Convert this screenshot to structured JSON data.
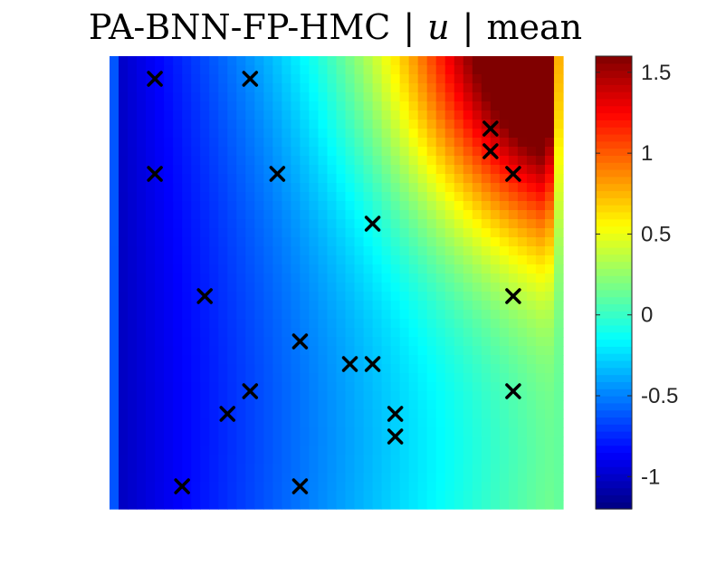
{
  "chart_data": {
    "type": "heatmap",
    "title_parts": {
      "prefix": "PA-BNN-FP-HMC",
      "variable": "u",
      "suffix": "mean"
    },
    "colormap": "jet",
    "colorbar": {
      "clim": [
        -1.2,
        1.6
      ],
      "ticks": [
        -1,
        -0.5,
        0,
        0.5,
        1,
        1.5
      ],
      "tick_labels": [
        "-1",
        "-0.5",
        "0",
        "0.5",
        "1",
        "1.5"
      ]
    },
    "axes_visible": false,
    "domain": {
      "x": [
        0,
        1
      ],
      "y": [
        0,
        1
      ]
    },
    "field_description": "Smooth contour field: low (blue, about -1.1) on left side, rising through cyan/yellow to a high peak (dark red, about 1.6) in the upper-right corner; thin boundary strip on left and right edges near 0.",
    "observation_points": [
      {
        "x": 0.1,
        "y": 0.95
      },
      {
        "x": 0.31,
        "y": 0.95
      },
      {
        "x": 0.84,
        "y": 0.84
      },
      {
        "x": 0.84,
        "y": 0.79
      },
      {
        "x": 0.1,
        "y": 0.74
      },
      {
        "x": 0.37,
        "y": 0.74
      },
      {
        "x": 0.89,
        "y": 0.74
      },
      {
        "x": 0.58,
        "y": 0.63
      },
      {
        "x": 0.21,
        "y": 0.47
      },
      {
        "x": 0.89,
        "y": 0.47
      },
      {
        "x": 0.42,
        "y": 0.37
      },
      {
        "x": 0.53,
        "y": 0.32
      },
      {
        "x": 0.58,
        "y": 0.32
      },
      {
        "x": 0.31,
        "y": 0.26
      },
      {
        "x": 0.89,
        "y": 0.26
      },
      {
        "x": 0.26,
        "y": 0.21
      },
      {
        "x": 0.63,
        "y": 0.21
      },
      {
        "x": 0.63,
        "y": 0.16
      },
      {
        "x": 0.16,
        "y": 0.05
      },
      {
        "x": 0.42,
        "y": 0.05
      }
    ],
    "marker": "x",
    "marker_color": "#000000"
  }
}
